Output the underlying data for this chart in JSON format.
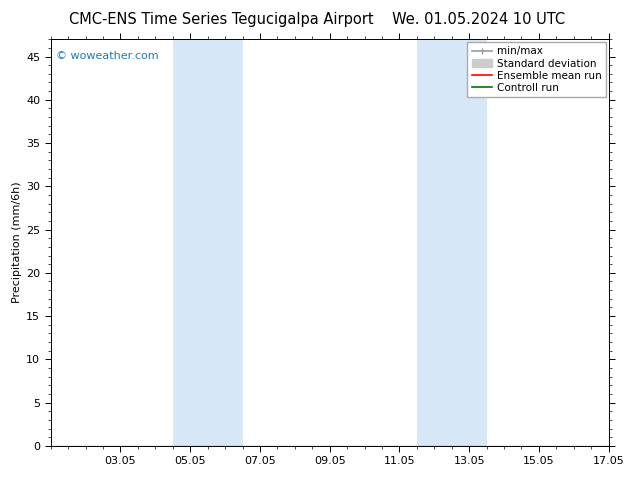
{
  "title_left": "CMC-ENS Time Series Tegucigalpa Airport",
  "title_right": "We. 01.05.2024 10 UTC",
  "ylabel": "Precipitation (mm/6h)",
  "ylim": [
    0,
    47
  ],
  "yticks": [
    0,
    5,
    10,
    15,
    20,
    25,
    30,
    35,
    40,
    45
  ],
  "xtick_labels": [
    "03.05",
    "05.05",
    "07.05",
    "09.05",
    "11.05",
    "13.05",
    "15.05",
    "17.05"
  ],
  "xtick_positions": [
    2,
    4,
    6,
    8,
    10,
    12,
    14,
    16
  ],
  "shaded_bands": [
    {
      "x_start": 3.5,
      "x_end": 5.5,
      "color": "#d6e8f8"
    },
    {
      "x_start": 10.5,
      "x_end": 12.5,
      "color": "#d6e8f8"
    }
  ],
  "watermark_text": "© woweather.com",
  "watermark_color": "#1a7abf",
  "legend_items": [
    {
      "label": "min/max",
      "color": "#999999",
      "lw": 1.2
    },
    {
      "label": "Standard deviation",
      "color": "#cccccc",
      "lw": 5
    },
    {
      "label": "Ensemble mean run",
      "color": "#ff0000",
      "lw": 1.2
    },
    {
      "label": "Controll run",
      "color": "#007700",
      "lw": 1.2
    }
  ],
  "bg_color": "#ffffff",
  "title_fontsize": 10.5,
  "watermark_fontsize": 8,
  "tick_fontsize": 8,
  "ylabel_fontsize": 8,
  "legend_fontsize": 7.5,
  "x_total": 16,
  "x_min": 0,
  "minor_tick_interval": 0.5
}
